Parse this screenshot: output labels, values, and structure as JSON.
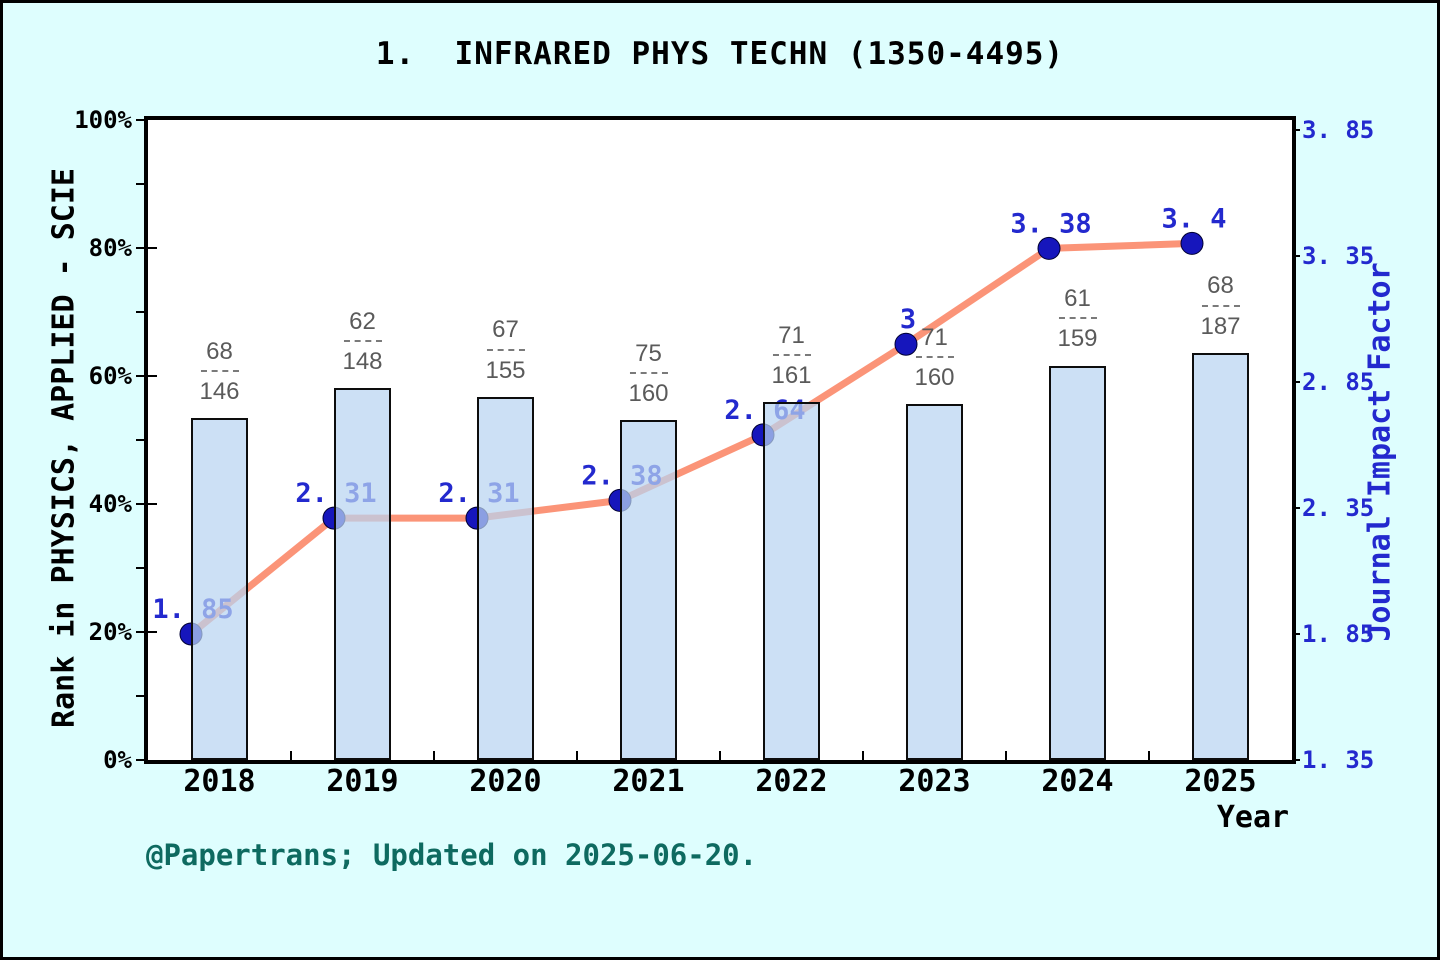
{
  "title": "1.  INFRARED PHYS TECHN (1350-4495)",
  "footer": "@Papertrans; Updated on 2025-06-20.",
  "axis_labels": {
    "y_left": "Rank in PHYSICS, APPLIED - SCIE",
    "y_right": "Journal Impact Factor",
    "x": "Year"
  },
  "chart_data": {
    "type": "bar+line",
    "categories": [
      "2018",
      "2019",
      "2020",
      "2021",
      "2022",
      "2023",
      "2024",
      "2025"
    ],
    "series": [
      {
        "name": "rank-percentile-bars",
        "type": "bar",
        "axis": "left",
        "unit": "%",
        "values": [
          53.42,
          58.11,
          56.77,
          53.13,
          55.9,
          55.63,
          61.64,
          63.64
        ],
        "rank_fractions": [
          "68/146",
          "62/148",
          "67/155",
          "75/160",
          "71/161",
          "71/160",
          "61/159",
          "68/187"
        ]
      },
      {
        "name": "journal-impact-factor-line",
        "type": "line",
        "axis": "right",
        "values": [
          1.85,
          2.31,
          2.31,
          2.38,
          2.64,
          3.0,
          3.38,
          3.4
        ],
        "point_labels": [
          "1. 85",
          "2. 31",
          "2. 31",
          "2. 38",
          "2. 64",
          "3",
          "3. 38",
          "3. 4"
        ]
      }
    ],
    "left_axis": {
      "ticks": [
        "0%",
        "20%",
        "40%",
        "60%",
        "80%",
        "100%"
      ],
      "range": [
        0,
        100
      ],
      "unit": "%"
    },
    "right_axis": {
      "ticks": [
        "1. 35",
        "1. 85",
        "2. 35",
        "2. 85",
        "3. 35",
        "3. 85"
      ],
      "range": [
        1.35,
        3.85
      ]
    },
    "grid": false,
    "legend": "none"
  },
  "colors": {
    "background": "#DEFEFE",
    "plot_background": "#FFFFFF",
    "bar_fill": "rgba(184,212,241,0.72)",
    "bar_border": "#0d0d0d",
    "line": "#FB9478",
    "marker": "#1616BC",
    "marker_edge": "#000033",
    "value_label_blue": "#2329CE",
    "fraction_gray": "#5a5a5a",
    "footer_teal": "#0E6A60",
    "axis_black": "#000000"
  }
}
